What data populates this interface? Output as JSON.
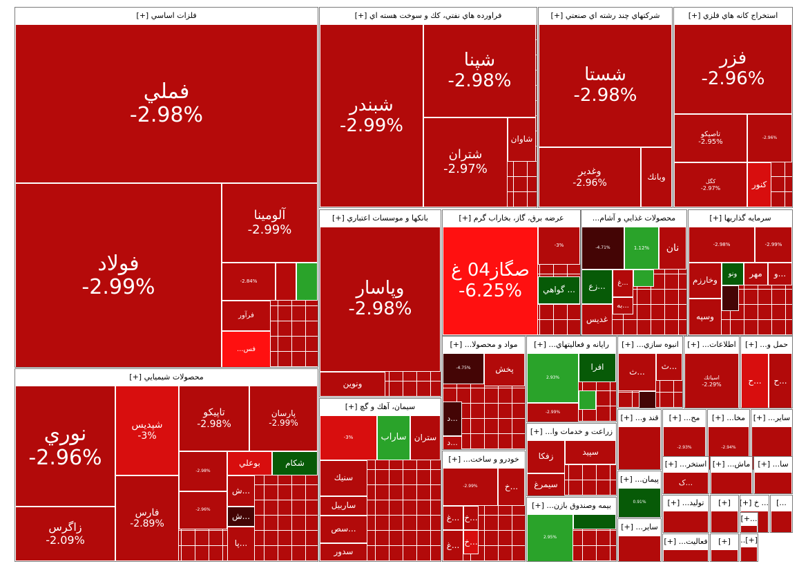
{
  "colors": {
    "neg_1": "#b50a0a",
    "neg_2": "#b20a0a",
    "neg_3": "#ad0c0c",
    "neg_deep": "#d80e0e",
    "neg_bright": "#ff1010",
    "dark": "#440505",
    "pos": "#2aa32a",
    "pos_dark": "#075a07"
  },
  "sectors": [
    {
      "id": "s1",
      "header": "فلزات اساسي [+]",
      "tiles": [
        {
          "name": "فملي",
          "pct": "-2.98%",
          "c": "neg_1"
        },
        {
          "name": "فولاد",
          "pct": "-2.99%",
          "c": "neg_1"
        },
        {
          "name": "آلومينا",
          "pct": "-2.99%",
          "c": "neg_1"
        },
        {
          "name": "",
          "pct": "-2.84%",
          "c": "neg_1"
        },
        {
          "name": "",
          "pct": "",
          "c": "neg_1"
        },
        {
          "name": "",
          "pct": "",
          "c": "pos"
        },
        {
          "name": "فرآور",
          "pct": "",
          "c": "neg_1"
        },
        {
          "name": "فس...",
          "pct": "",
          "c": "neg_bright"
        }
      ]
    },
    {
      "id": "s2",
      "header": "فراورده هاي نفتي، كك و سوخت هسته اي [+]",
      "tiles": [
        {
          "name": "شبندر",
          "pct": "-2.99%",
          "c": "neg_2"
        },
        {
          "name": "شپنا",
          "pct": "-2.98%",
          "c": "neg_2"
        },
        {
          "name": "شتران",
          "pct": "-2.97%",
          "c": "neg_2"
        },
        {
          "name": "شاوان",
          "pct": "",
          "c": "neg_2"
        }
      ]
    },
    {
      "id": "s3",
      "header": "شركتهاي چند رشته اي صنعتي [+]",
      "tiles": [
        {
          "name": "شستا",
          "pct": "-2.98%",
          "c": "neg_2"
        },
        {
          "name": "وغدير",
          "pct": "-2.96%",
          "c": "neg_2"
        },
        {
          "name": "وبانك",
          "pct": "",
          "c": "neg_2"
        }
      ]
    },
    {
      "id": "s4",
      "header": "استخراج كانه هاي فلزي [+]",
      "tiles": [
        {
          "name": "فزر",
          "pct": "-2.96%",
          "c": "neg_2"
        },
        {
          "name": "تاصيكو",
          "pct": "-2.95%",
          "c": "neg_2"
        },
        {
          "name": "",
          "pct": "-2.96%",
          "c": "neg_2"
        },
        {
          "name": "كگل",
          "pct": "-2.97%",
          "c": "neg_2"
        },
        {
          "name": "كنور",
          "pct": "",
          "c": "neg_deep"
        }
      ]
    },
    {
      "id": "s5",
      "header": "بانكها و موسسات اعتباري [+]",
      "tiles": [
        {
          "name": "وپاسار",
          "pct": "-2.98%",
          "c": "neg_2"
        },
        {
          "name": "ونوين",
          "pct": "",
          "c": "neg_2"
        }
      ]
    },
    {
      "id": "s6",
      "header": "عرضه برق، گاز، بخاراب گرم [+]",
      "tiles": [
        {
          "name": "صگاز04 غ",
          "pct": "-6.25%",
          "c": "neg_bright"
        },
        {
          "name": "",
          "pct": "-3%",
          "c": "neg_2"
        },
        {
          "name": "... گواهي",
          "pct": "",
          "c": "pos_dark"
        }
      ]
    },
    {
      "id": "s7",
      "header": "محصولات غذايي و آشام...",
      "tiles": [
        {
          "name": "",
          "pct": "-4.71%",
          "c": "dark"
        },
        {
          "name": "",
          "pct": "1.12%",
          "c": "pos"
        },
        {
          "name": "نان",
          "pct": "",
          "c": "neg_2"
        },
        {
          "name": "...زع",
          "pct": "",
          "c": "pos_dark"
        },
        {
          "name": "...غ",
          "pct": "",
          "c": "neg_2"
        },
        {
          "name": "",
          "pct": "",
          "c": "pos"
        },
        {
          "name": "...به",
          "pct": "",
          "c": "neg_2"
        },
        {
          "name": "غديس",
          "pct": "",
          "c": "neg_2"
        }
      ]
    },
    {
      "id": "s8",
      "header": "سرمايه گذاريها [+]",
      "tiles": [
        {
          "name": "",
          "pct": "-2.98%",
          "c": "neg_2"
        },
        {
          "name": "",
          "pct": "-2.99%",
          "c": "neg_2"
        },
        {
          "name": "وخارزم",
          "pct": "",
          "c": "neg_2"
        },
        {
          "name": "ونو",
          "pct": "",
          "c": "pos_dark"
        },
        {
          "name": "مهر",
          "pct": "",
          "c": "neg_2"
        },
        {
          "name": "...و",
          "pct": "",
          "c": "neg_2"
        },
        {
          "name": "",
          "pct": "",
          "c": "dark"
        },
        {
          "name": "وسپه",
          "pct": "",
          "c": "neg_2"
        }
      ]
    },
    {
      "id": "s9",
      "header": "محصولات شيميايي [+]",
      "tiles": [
        {
          "name": "نوري",
          "pct": "-2.96%",
          "c": "neg_2"
        },
        {
          "name": "زاگرس",
          "pct": "-2.09%",
          "c": "neg_2"
        },
        {
          "name": "شپديس",
          "pct": "-3%",
          "c": "neg_deep"
        },
        {
          "name": "تاپيكو",
          "pct": "-2.98%",
          "c": "neg_2"
        },
        {
          "name": "پارسان",
          "pct": "-2.99%",
          "c": "neg_2"
        },
        {
          "name": "فارس",
          "pct": "-2.89%",
          "c": "neg_2"
        },
        {
          "name": "",
          "pct": "-2.98%",
          "c": "neg_2"
        },
        {
          "name": "بوعلي",
          "pct": "",
          "c": "neg_deep"
        },
        {
          "name": "شكام",
          "pct": "",
          "c": "pos_dark"
        },
        {
          "name": "",
          "pct": "-2.96%",
          "c": "neg_2"
        },
        {
          "name": "...ش",
          "pct": "",
          "c": "neg_2"
        },
        {
          "name": "...ش",
          "pct": "",
          "c": "dark"
        },
        {
          "name": "...پا",
          "pct": "",
          "c": "neg_2"
        }
      ]
    },
    {
      "id": "s10",
      "header": "سيمان، آهك و گچ [+]",
      "tiles": [
        {
          "name": "",
          "pct": "-3%",
          "c": "neg_deep"
        },
        {
          "name": "ساراب",
          "pct": "",
          "c": "pos"
        },
        {
          "name": "ستران",
          "pct": "",
          "c": "neg_2"
        },
        {
          "name": "سنيك",
          "pct": "",
          "c": "neg_2"
        },
        {
          "name": "ساربيل",
          "pct": "",
          "c": "neg_2"
        },
        {
          "name": "...سص",
          "pct": "",
          "c": "neg_2"
        },
        {
          "name": "سدور",
          "pct": "",
          "c": "neg_2"
        }
      ]
    },
    {
      "id": "s11",
      "header": "مواد و محصولا... [+]",
      "tiles": [
        {
          "name": "",
          "pct": "-4.75%",
          "c": "dark"
        },
        {
          "name": "پخش",
          "pct": "",
          "c": "neg_2"
        },
        {
          "name": "...د",
          "pct": "",
          "c": "dark"
        },
        {
          "name": "...د",
          "pct": "",
          "c": "neg_2"
        }
      ]
    },
    {
      "id": "s12",
      "header": "رايانه و فعاليتهاي... [+]",
      "tiles": [
        {
          "name": "",
          "pct": "2.93%",
          "c": "pos"
        },
        {
          "name": "افرا",
          "pct": "",
          "c": "pos_dark"
        },
        {
          "name": "",
          "pct": "-2.99%",
          "c": "neg_2"
        },
        {
          "name": "",
          "pct": "",
          "c": "pos"
        }
      ]
    },
    {
      "id": "s13",
      "header": "انبوه سازي... [+]",
      "tiles": [
        {
          "name": "...ث",
          "pct": "",
          "c": "neg_2"
        },
        {
          "name": "...ث",
          "pct": "",
          "c": "neg_2"
        },
        {
          "name": "",
          "pct": "",
          "c": "dark"
        }
      ]
    },
    {
      "id": "s14",
      "header": "اطلاعات... [+]",
      "tiles": [
        {
          "name": "اسياتك",
          "pct": "-2.29%",
          "c": "neg_2"
        }
      ]
    },
    {
      "id": "s15",
      "header": "حمل و... [+]",
      "tiles": [
        {
          "name": "...ح",
          "pct": "",
          "c": "neg_deep"
        },
        {
          "name": "...ح",
          "pct": "",
          "c": "neg_2"
        }
      ]
    },
    {
      "id": "s16",
      "header": "قند و... [+]",
      "tiles": [
        {
          "name": "",
          "pct": "",
          "c": "neg_2"
        }
      ]
    },
    {
      "id": "s17",
      "header": "مح... [+]",
      "tiles": [
        {
          "name": "",
          "pct": "-2.93%",
          "c": "neg_2"
        }
      ]
    },
    {
      "id": "s18",
      "header": "مخا... [+]",
      "tiles": [
        {
          "name": "",
          "pct": "-2.94%",
          "c": "neg_2"
        }
      ]
    },
    {
      "id": "s19",
      "header": "ساير... [+]",
      "tiles": [
        {
          "name": "",
          "pct": "",
          "c": "neg_2"
        }
      ]
    },
    {
      "id": "s20",
      "header": "زراعت و خدمات وا... [+]",
      "tiles": [
        {
          "name": "زفكا",
          "pct": "",
          "c": "neg_2"
        },
        {
          "name": "سپيد",
          "pct": "",
          "c": "neg_2"
        },
        {
          "name": "سيمرغ",
          "pct": "",
          "c": "neg_2"
        }
      ]
    },
    {
      "id": "s21",
      "header": "خودرو و ساخت... [+]",
      "tiles": [
        {
          "name": "",
          "pct": "-2.99%",
          "c": "neg_2"
        },
        {
          "name": "...خ",
          "pct": "",
          "c": "neg_2"
        },
        {
          "name": "...غ",
          "pct": "",
          "c": "neg_2"
        },
        {
          "name": "...خ",
          "pct": "",
          "c": "neg_2"
        },
        {
          "name": "...خ",
          "pct": "",
          "c": "neg_deep"
        },
        {
          "name": "...غ",
          "pct": "",
          "c": "neg_2"
        }
      ]
    },
    {
      "id": "s22",
      "header": "پيمان... [+]",
      "tiles": [
        {
          "name": "",
          "pct": "0.91%",
          "c": "pos_dark"
        }
      ]
    },
    {
      "id": "s23",
      "header": "بيمه وصندوق بازن... [+]",
      "tiles": [
        {
          "name": "",
          "pct": "2.95%",
          "c": "pos"
        },
        {
          "name": "",
          "pct": "",
          "c": "pos_dark"
        }
      ]
    },
    {
      "id": "s24",
      "header": "ساير... [+]",
      "tiles": [
        {
          "name": "",
          "pct": "",
          "c": "neg_2"
        }
      ]
    },
    {
      "id": "s25",
      "header": "استخر... [+]",
      "tiles": [
        {
          "name": "...ک",
          "pct": "",
          "c": "neg_2"
        }
      ]
    },
    {
      "id": "s26",
      "header": "ماش... [+]",
      "tiles": [
        {
          "name": "",
          "pct": "",
          "c": "neg_2"
        }
      ]
    },
    {
      "id": "s27",
      "header": "سا... [+]",
      "tiles": [
        {
          "name": "",
          "pct": "",
          "c": "neg_2"
        }
      ]
    },
    {
      "id": "s28",
      "header": "توليد... [+]",
      "tiles": [
        {
          "name": "",
          "pct": "",
          "c": "neg_2"
        }
      ]
    },
    {
      "id": "s29",
      "header": "[+]",
      "tiles": [
        {
          "name": "",
          "pct": "",
          "c": "neg_2"
        }
      ]
    },
    {
      "id": "s30",
      "header": "... خ [+]",
      "tiles": [
        {
          "name": "",
          "pct": "",
          "c": "neg_2"
        }
      ]
    },
    {
      "id": "s31",
      "header": "...]",
      "tiles": [
        {
          "name": "",
          "pct": "",
          "c": "neg_2"
        }
      ]
    },
    {
      "id": "s32",
      "header": "فعاليت... [+]",
      "tiles": [
        {
          "name": "",
          "pct": "",
          "c": "neg_2"
        }
      ]
    },
    {
      "id": "s33",
      "header": "[+]",
      "tiles": [
        {
          "name": "",
          "pct": "",
          "c": "neg_2"
        }
      ]
    },
    {
      "id": "s34",
      "header": "...+]",
      "tiles": [
        {
          "name": "",
          "pct": "",
          "c": "neg_2"
        }
      ]
    },
    {
      "id": "s35",
      "header": "[+]...",
      "tiles": [
        {
          "name": "",
          "pct": "",
          "c": "neg_2"
        }
      ]
    }
  ],
  "chart_data": {
    "type": "heatmap",
    "subtype": "treemap",
    "title": "",
    "color_scale": "red = negative change, green = positive change",
    "groups": [
      {
        "sector": "فلزات اساسي",
        "items": [
          [
            "فملي",
            -2.98
          ],
          [
            "فولاد",
            -2.99
          ],
          [
            "آلومينا",
            -2.99
          ],
          [
            "",
            -2.84
          ]
        ]
      },
      {
        "sector": "فراورده هاي نفتي، كك و سوخت هسته اي",
        "items": [
          [
            "شبندر",
            -2.99
          ],
          [
            "شپنا",
            -2.98
          ],
          [
            "شتران",
            -2.97
          ]
        ]
      },
      {
        "sector": "شركتهاي چند رشته اي صنعتي",
        "items": [
          [
            "شستا",
            -2.98
          ],
          [
            "وغدير",
            -2.96
          ]
        ]
      },
      {
        "sector": "استخراج كانه هاي فلزي",
        "items": [
          [
            "فزر",
            -2.96
          ],
          [
            "تاصيكو",
            -2.95
          ],
          [
            "",
            -2.96
          ],
          [
            "كگل",
            -2.97
          ]
        ]
      },
      {
        "sector": "بانكها و موسسات اعتباري",
        "items": [
          [
            "وپاسار",
            -2.98
          ]
        ]
      },
      {
        "sector": "عرضه برق، گاز، بخاراب گرم",
        "items": [
          [
            "صگاز04 غ",
            -6.25
          ],
          [
            "",
            -3
          ]
        ]
      },
      {
        "sector": "محصولات غذايي و آشام...",
        "items": [
          [
            "",
            -4.71
          ],
          [
            "",
            1.12
          ]
        ]
      },
      {
        "sector": "سرمايه گذاريها",
        "items": [
          [
            "",
            -2.98
          ],
          [
            "",
            -2.99
          ]
        ]
      },
      {
        "sector": "محصولات شيميايي",
        "items": [
          [
            "نوري",
            -2.96
          ],
          [
            "زاگرس",
            -2.09
          ],
          [
            "شپديس",
            -3
          ],
          [
            "تاپيكو",
            -2.98
          ],
          [
            "پارسان",
            -2.99
          ],
          [
            "فارس",
            -2.89
          ],
          [
            "",
            -2.98
          ],
          [
            "",
            -2.96
          ]
        ]
      },
      {
        "sector": "سيمان، آهك و گچ",
        "items": [
          [
            "",
            -3
          ]
        ]
      },
      {
        "sector": "مواد و محصولا...",
        "items": [
          [
            "",
            -4.75
          ]
        ]
      },
      {
        "sector": "رايانه و فعاليتهاي...",
        "items": [
          [
            "",
            2.93
          ],
          [
            "",
            -2.99
          ]
        ]
      },
      {
        "sector": "اطلاعات...",
        "items": [
          [
            "اسياتك",
            -2.29
          ]
        ]
      },
      {
        "sector": "مح...",
        "items": [
          [
            "",
            -2.93
          ]
        ]
      },
      {
        "sector": "مخا...",
        "items": [
          [
            "",
            -2.94
          ]
        ]
      },
      {
        "sector": "خودرو و ساخت...",
        "items": [
          [
            "",
            -2.99
          ]
        ]
      },
      {
        "sector": "پيمان...",
        "items": [
          [
            "",
            0.91
          ]
        ]
      },
      {
        "sector": "بيمه وصندوق بازن...",
        "items": [
          [
            "",
            2.95
          ]
        ]
      }
    ]
  }
}
